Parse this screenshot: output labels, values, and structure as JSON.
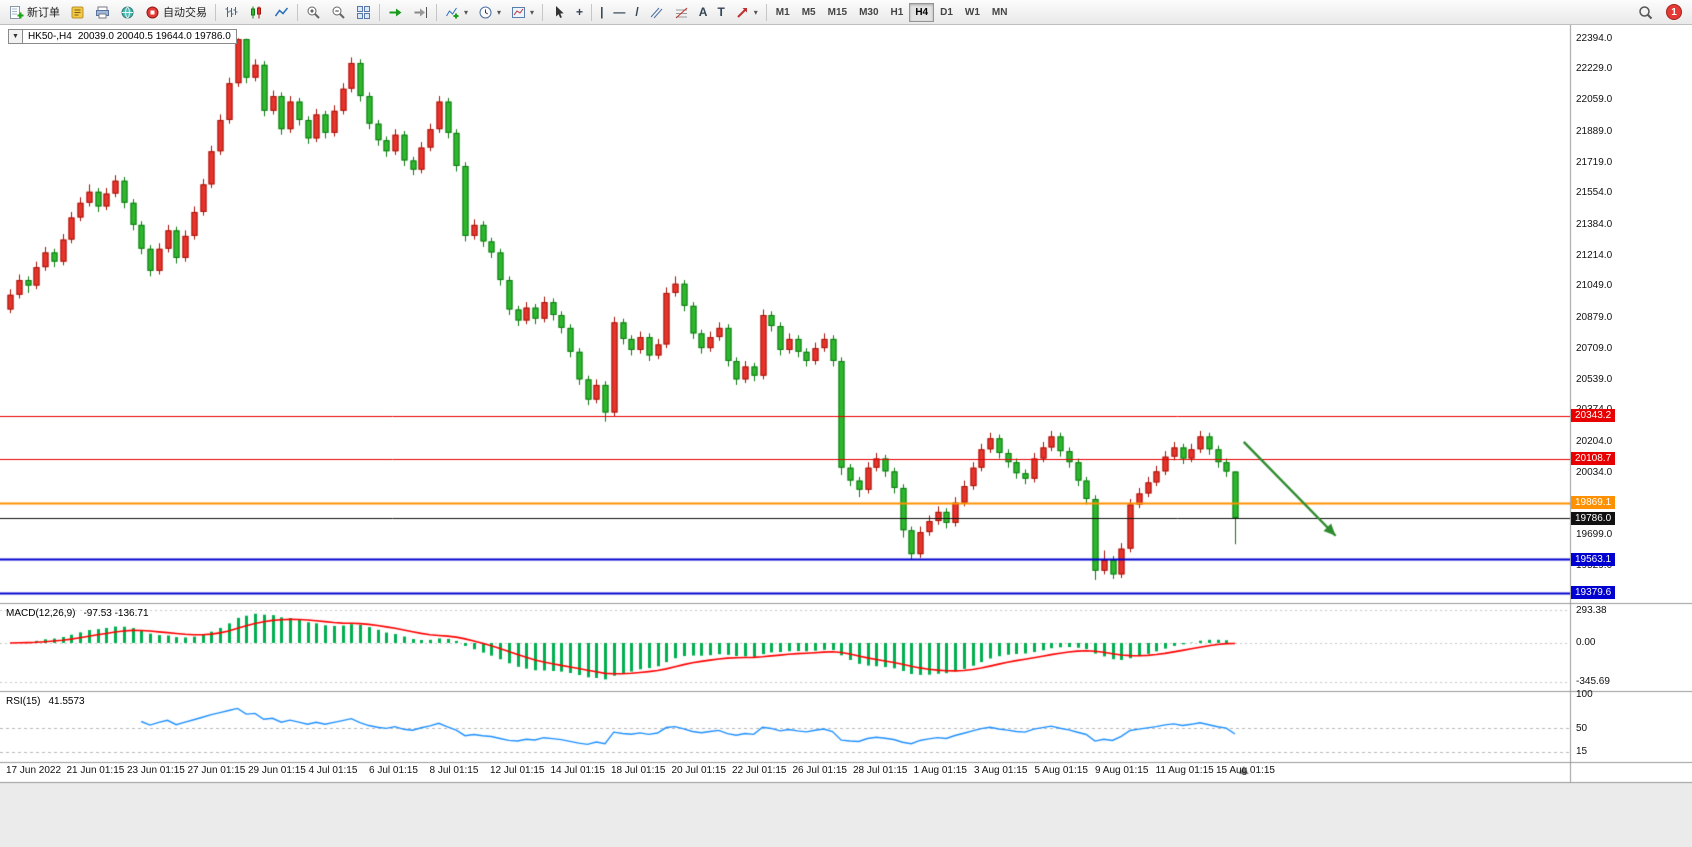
{
  "app": {
    "notification_count": "1"
  },
  "toolbar": {
    "new_order_label": "新订单",
    "autotrading_label": "自动交易",
    "timeframes": [
      {
        "label": "M1",
        "active": false
      },
      {
        "label": "M5",
        "active": false
      },
      {
        "label": "M15",
        "active": false
      },
      {
        "label": "M30",
        "active": false
      },
      {
        "label": "H1",
        "active": false
      },
      {
        "label": "H4",
        "active": true
      },
      {
        "label": "D1",
        "active": false
      },
      {
        "label": "W1",
        "active": false
      },
      {
        "label": "MN",
        "active": false
      }
    ]
  },
  "icons": {
    "symbol_collapse": "▼",
    "crosshair": "+",
    "vertical_line": "|",
    "horizontal_line": "—",
    "trendline": "/",
    "text": "A",
    "text_label": "T",
    "dropdown": "▾"
  },
  "symbol_box": {
    "symbol": "HK50-,H4",
    "ohlc": "20039.0 20040.5 19644.0 19786.0"
  },
  "chart_data": {
    "type": "candlestick",
    "symbol": "HK50-",
    "timeframe": "H4",
    "last_ohlc": {
      "open": 20039.0,
      "high": 20040.5,
      "low": 19644.0,
      "close": 19786.0
    },
    "up_color": "#e8352c",
    "down_color": "#2eb82e",
    "price_axis": {
      "min": 19330,
      "max": 22450,
      "ticks": [
        "22394.0",
        "22229.0",
        "22059.0",
        "21889.0",
        "21719.0",
        "21554.0",
        "21384.0",
        "21214.0",
        "21049.0",
        "20879.0",
        "20709.0",
        "20539.0",
        "20374.0",
        "20204.0",
        "20034.0",
        "19864.0",
        "19699.0",
        "19529.0"
      ]
    },
    "candles": [
      [
        20920,
        21030,
        20900,
        21000
      ],
      [
        21000,
        21110,
        20980,
        21080
      ],
      [
        21080,
        21100,
        21010,
        21050
      ],
      [
        21050,
        21180,
        21030,
        21150
      ],
      [
        21150,
        21260,
        21130,
        21230
      ],
      [
        21230,
        21250,
        21150,
        21180
      ],
      [
        21180,
        21330,
        21160,
        21300
      ],
      [
        21300,
        21450,
        21280,
        21420
      ],
      [
        21420,
        21530,
        21400,
        21500
      ],
      [
        21500,
        21600,
        21480,
        21560
      ],
      [
        21560,
        21580,
        21450,
        21480
      ],
      [
        21480,
        21580,
        21460,
        21550
      ],
      [
        21550,
        21650,
        21530,
        21620
      ],
      [
        21620,
        21640,
        21470,
        21500
      ],
      [
        21500,
        21520,
        21350,
        21380
      ],
      [
        21380,
        21400,
        21220,
        21250
      ],
      [
        21250,
        21270,
        21100,
        21130
      ],
      [
        21130,
        21280,
        21110,
        21250
      ],
      [
        21250,
        21380,
        21230,
        21350
      ],
      [
        21350,
        21370,
        21170,
        21200
      ],
      [
        21200,
        21350,
        21180,
        21320
      ],
      [
        21320,
        21480,
        21300,
        21450
      ],
      [
        21450,
        21630,
        21430,
        21600
      ],
      [
        21600,
        21810,
        21580,
        21780
      ],
      [
        21780,
        21980,
        21760,
        21950
      ],
      [
        21950,
        22180,
        21930,
        22150
      ],
      [
        22150,
        22394,
        22130,
        22390
      ],
      [
        22390,
        22392,
        22150,
        22180
      ],
      [
        22180,
        22280,
        22160,
        22250
      ],
      [
        22250,
        22270,
        21970,
        22000
      ],
      [
        22000,
        22110,
        21980,
        22080
      ],
      [
        22080,
        22100,
        21870,
        21900
      ],
      [
        21900,
        22080,
        21880,
        22050
      ],
      [
        22050,
        22070,
        21920,
        21950
      ],
      [
        21950,
        21970,
        21820,
        21850
      ],
      [
        21850,
        22010,
        21830,
        21980
      ],
      [
        21980,
        22000,
        21850,
        21880
      ],
      [
        21880,
        22030,
        21860,
        22000
      ],
      [
        22000,
        22150,
        21980,
        22120
      ],
      [
        22120,
        22290,
        22100,
        22260
      ],
      [
        22260,
        22280,
        22050,
        22080
      ],
      [
        22080,
        22100,
        21900,
        21930
      ],
      [
        21930,
        21950,
        21810,
        21840
      ],
      [
        21840,
        21860,
        21750,
        21780
      ],
      [
        21780,
        21900,
        21760,
        21870
      ],
      [
        21870,
        21890,
        21700,
        21730
      ],
      [
        21730,
        21750,
        21650,
        21680
      ],
      [
        21680,
        21830,
        21660,
        21800
      ],
      [
        21800,
        21930,
        21780,
        21900
      ],
      [
        21900,
        22080,
        21880,
        22050
      ],
      [
        22050,
        22070,
        21850,
        21880
      ],
      [
        21880,
        21900,
        21670,
        21700
      ],
      [
        21700,
        21720,
        21290,
        21320
      ],
      [
        21320,
        21410,
        21300,
        21380
      ],
      [
        21380,
        21400,
        21260,
        21290
      ],
      [
        21290,
        21310,
        21200,
        21230
      ],
      [
        21230,
        21250,
        21050,
        21080
      ],
      [
        21080,
        21100,
        20890,
        20920
      ],
      [
        20920,
        20940,
        20830,
        20860
      ],
      [
        20860,
        20960,
        20840,
        20930
      ],
      [
        20930,
        20950,
        20840,
        20870
      ],
      [
        20870,
        20990,
        20850,
        20960
      ],
      [
        20960,
        20980,
        20860,
        20890
      ],
      [
        20890,
        20910,
        20790,
        20820
      ],
      [
        20820,
        20840,
        20660,
        20690
      ],
      [
        20690,
        20710,
        20510,
        20540
      ],
      [
        20540,
        20560,
        20400,
        20430
      ],
      [
        20430,
        20540,
        20410,
        20510
      ],
      [
        20510,
        20530,
        20310,
        20360
      ],
      [
        20360,
        20880,
        20340,
        20850
      ],
      [
        20850,
        20870,
        20730,
        20760
      ],
      [
        20760,
        20780,
        20670,
        20700
      ],
      [
        20700,
        20800,
        20680,
        20770
      ],
      [
        20770,
        20790,
        20640,
        20670
      ],
      [
        20670,
        20760,
        20650,
        20730
      ],
      [
        20730,
        21040,
        20710,
        21010
      ],
      [
        21010,
        21100,
        20990,
        21060
      ],
      [
        21060,
        21080,
        20910,
        20940
      ],
      [
        20940,
        20960,
        20760,
        20790
      ],
      [
        20790,
        20810,
        20680,
        20710
      ],
      [
        20710,
        20800,
        20690,
        20770
      ],
      [
        20770,
        20850,
        20750,
        20820
      ],
      [
        20820,
        20840,
        20610,
        20640
      ],
      [
        20640,
        20660,
        20510,
        20540
      ],
      [
        20540,
        20640,
        20520,
        20610
      ],
      [
        20610,
        20630,
        20530,
        20560
      ],
      [
        20560,
        20920,
        20540,
        20890
      ],
      [
        20890,
        20910,
        20800,
        20830
      ],
      [
        20830,
        20850,
        20670,
        20700
      ],
      [
        20700,
        20790,
        20680,
        20760
      ],
      [
        20760,
        20780,
        20660,
        20690
      ],
      [
        20690,
        20710,
        20610,
        20640
      ],
      [
        20640,
        20740,
        20620,
        20710
      ],
      [
        20710,
        20790,
        20690,
        20760
      ],
      [
        20760,
        20780,
        20610,
        20640
      ],
      [
        20640,
        20660,
        20020,
        20060
      ],
      [
        20060,
        20080,
        19960,
        19990
      ],
      [
        19990,
        20010,
        19900,
        19940
      ],
      [
        19940,
        20090,
        19920,
        20060
      ],
      [
        20060,
        20140,
        20040,
        20110
      ],
      [
        20110,
        20130,
        20010,
        20040
      ],
      [
        20040,
        20060,
        19920,
        19950
      ],
      [
        19950,
        19970,
        19680,
        19720
      ],
      [
        19720,
        19740,
        19560,
        19590
      ],
      [
        19590,
        19740,
        19570,
        19710
      ],
      [
        19710,
        19800,
        19690,
        19770
      ],
      [
        19770,
        19850,
        19750,
        19820
      ],
      [
        19820,
        19840,
        19730,
        19760
      ],
      [
        19760,
        19900,
        19740,
        19870
      ],
      [
        19870,
        19990,
        19850,
        19960
      ],
      [
        19960,
        20090,
        19940,
        20060
      ],
      [
        20060,
        20190,
        20040,
        20160
      ],
      [
        20160,
        20250,
        20140,
        20220
      ],
      [
        20220,
        20240,
        20110,
        20140
      ],
      [
        20140,
        20160,
        20060,
        20090
      ],
      [
        20090,
        20110,
        20000,
        20030
      ],
      [
        20030,
        20050,
        19970,
        20000
      ],
      [
        20000,
        20140,
        19980,
        20110
      ],
      [
        20110,
        20200,
        20090,
        20170
      ],
      [
        20170,
        20260,
        20150,
        20230
      ],
      [
        20230,
        20250,
        20120,
        20150
      ],
      [
        20150,
        20170,
        20060,
        20090
      ],
      [
        20090,
        20110,
        19960,
        19990
      ],
      [
        19990,
        20010,
        19860,
        19890
      ],
      [
        19890,
        19910,
        19450,
        19500
      ],
      [
        19500,
        19610,
        19480,
        19560
      ],
      [
        19560,
        19580,
        19455,
        19480
      ],
      [
        19480,
        19650,
        19460,
        19620
      ],
      [
        19620,
        19890,
        19600,
        19860
      ],
      [
        19860,
        19950,
        19840,
        19920
      ],
      [
        19920,
        20010,
        19900,
        19980
      ],
      [
        19980,
        20070,
        19960,
        20040
      ],
      [
        20040,
        20150,
        20020,
        20120
      ],
      [
        20120,
        20200,
        20100,
        20170
      ],
      [
        20170,
        20190,
        20080,
        20110
      ],
      [
        20110,
        20190,
        20090,
        20160
      ],
      [
        20160,
        20260,
        20140,
        20230
      ],
      [
        20230,
        20250,
        20130,
        20160
      ],
      [
        20160,
        20180,
        20060,
        20090
      ],
      [
        20090,
        20110,
        20010,
        20039
      ],
      [
        20039,
        20040.5,
        19644,
        19786
      ]
    ],
    "hlines": [
      {
        "price": 20343.2,
        "label": "20343.2",
        "color": "#e80000",
        "width": 1
      },
      {
        "price": 20108.7,
        "label": "20108.7",
        "color": "#e80000",
        "width": 1
      },
      {
        "price": 19869.1,
        "label": "19869.1",
        "color": "#ff9000",
        "width": 2
      },
      {
        "price": 19786.0,
        "label": "19786.0",
        "color": "#111111",
        "width": 1,
        "role": "current-price"
      },
      {
        "price": 19563.1,
        "label": "19563.1",
        "color": "#0000d0",
        "width": 2
      },
      {
        "price": 19379.6,
        "label": "19379.6",
        "color": "#0000d0",
        "width": 2
      }
    ],
    "trend_arrow": {
      "from": {
        "bar": 141,
        "price": 20200
      },
      "to": {
        "bar": 151.5,
        "price": 19690
      },
      "color": "#2e8b2e"
    },
    "macd": {
      "title": "MACD(12,26,9)",
      "values": "-97.53 -136.71",
      "params": [
        12,
        26,
        9
      ],
      "axis_ticks": [
        "293.38",
        "0.00",
        "-345.69"
      ],
      "range": [
        -420,
        330
      ],
      "histogram_color": "#00b050",
      "signal_color": "#ff0000"
    },
    "rsi": {
      "title": "RSI(15)",
      "value": "41.5573",
      "period": 15,
      "axis_ticks": [
        "100",
        "50",
        "15"
      ],
      "levels": [
        50,
        15
      ],
      "range": [
        0,
        100
      ],
      "line_color": "#1e90ff"
    },
    "time_axis": [
      "17 Jun 2022",
      "21 Jun 01:15",
      "23 Jun 01:15",
      "27 Jun 01:15",
      "29 Jun 01:15",
      "4 Jul 01:15",
      "6 Jul 01:15",
      "8 Jul 01:15",
      "12 Jul 01:15",
      "14 Jul 01:15",
      "18 Jul 01:15",
      "20 Jul 01:15",
      "22 Jul 01:15",
      "26 Jul 01:15",
      "28 Jul 01:15",
      "1 Aug 01:15",
      "3 Aug 01:15",
      "5 Aug 01:15",
      "9 Aug 01:15",
      "11 Aug 01:15",
      "15 Aug 01:15"
    ]
  }
}
